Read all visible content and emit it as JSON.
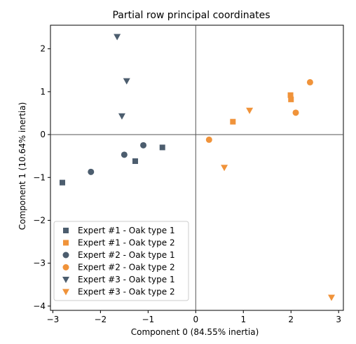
{
  "chart_data": {
    "type": "scatter",
    "title": "Partial row principal coordinates",
    "xlabel": "Component 0 (84.55% inertia)",
    "ylabel": "Component 1 (10.64% inertia)",
    "xlim": [
      -3.05,
      3.1
    ],
    "ylim": [
      -4.1,
      2.55
    ],
    "xticks": [
      -3,
      -2,
      -1,
      0,
      1,
      2,
      3
    ],
    "yticks": [
      -4,
      -3,
      -2,
      -1,
      0,
      1,
      2
    ],
    "zero_lines": true,
    "legend_position": "lower-left",
    "series": [
      {
        "name": "Expert #1 - Oak type 1",
        "color": "#4c5d6e",
        "marker": "square",
        "points": [
          [
            -2.8,
            -1.12
          ],
          [
            -0.7,
            -0.3
          ],
          [
            -1.27,
            -0.62
          ]
        ]
      },
      {
        "name": "Expert #1 - Oak type 2",
        "color": "#f0933a",
        "marker": "square",
        "points": [
          [
            2.0,
            0.82
          ],
          [
            1.99,
            0.92
          ],
          [
            0.78,
            0.3
          ]
        ]
      },
      {
        "name": "Expert #2 - Oak type 1",
        "color": "#4c5d6e",
        "marker": "circle",
        "points": [
          [
            -2.2,
            -0.87
          ],
          [
            -1.5,
            -0.47
          ],
          [
            -1.1,
            -0.25
          ]
        ]
      },
      {
        "name": "Expert #2 - Oak type 2",
        "color": "#f0933a",
        "marker": "circle",
        "points": [
          [
            0.28,
            -0.12
          ],
          [
            2.1,
            0.51
          ],
          [
            2.4,
            1.22
          ]
        ]
      },
      {
        "name": "Expert #3 - Oak type 1",
        "color": "#4c5d6e",
        "marker": "triangle-down",
        "points": [
          [
            -1.65,
            2.28
          ],
          [
            -1.45,
            1.25
          ],
          [
            -1.55,
            0.43
          ]
        ]
      },
      {
        "name": "Expert #3 - Oak type 2",
        "color": "#f0933a",
        "marker": "triangle-down",
        "points": [
          [
            1.13,
            0.56
          ],
          [
            0.6,
            -0.77
          ],
          [
            2.85,
            -3.8
          ]
        ]
      }
    ]
  }
}
